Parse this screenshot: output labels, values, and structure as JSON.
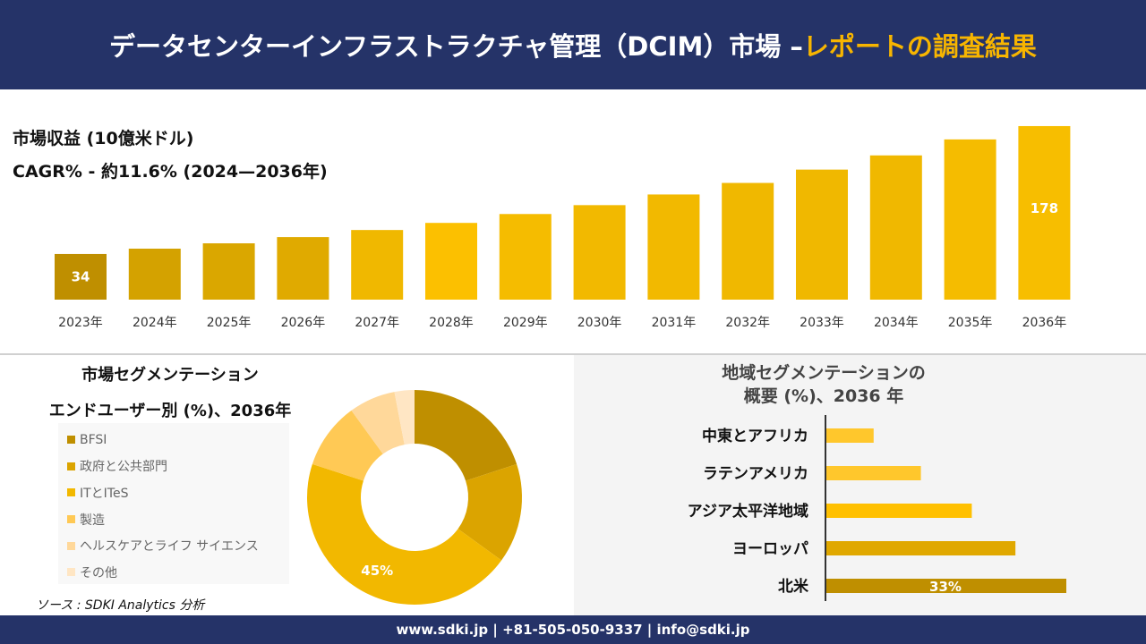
{
  "header": {
    "title_main": "データセンターインフラストラクチャ管理（DCIM）市場 –",
    "title_accent": "レポートの調査結果"
  },
  "revenue": {
    "title": "市場収益 (10億米ドル)",
    "cagr": "CAGR% - 約11.6% (2024—2036年)"
  },
  "chart_data": [
    {
      "type": "bar",
      "categories": [
        "2023年",
        "2024年",
        "2025年",
        "2026年",
        "2027年",
        "2028年",
        "2029年",
        "2030年",
        "2031年",
        "2032年",
        "2033年",
        "2034年",
        "2035年",
        "2036年"
      ],
      "values": [
        34,
        40,
        46,
        53,
        61,
        69,
        79,
        89,
        101,
        114,
        129,
        145,
        163,
        178
      ],
      "data_labels": [
        "34",
        null,
        null,
        null,
        null,
        null,
        null,
        null,
        null,
        null,
        null,
        null,
        null,
        "178"
      ],
      "colors": [
        "#bf8f00",
        "#d4a200",
        "#daa700",
        "#e0aa00",
        "#f0b800",
        "#fcc000",
        "#f5bc00",
        "#f2b900",
        "#f2b900",
        "#f0b800",
        "#f0b800",
        "#f0b800",
        "#f5bc00",
        "#f7be00"
      ],
      "title": "市場収益 (10億米ドル)",
      "ylabel": "",
      "xlabel": ""
    },
    {
      "type": "pie",
      "title": "市場セグメンテーション エンドユーザー別 (%)、2036年",
      "categories": [
        "BFSI",
        "政府と公共部門",
        "ITとITeS",
        "製造",
        "ヘルスケアとライフ サイエンス",
        "その他"
      ],
      "values": [
        20,
        15,
        45,
        10,
        7,
        3
      ],
      "data_labels": [
        null,
        null,
        "45%",
        null,
        null,
        null
      ],
      "colors": [
        "#bf8f00",
        "#dba400",
        "#f2b800",
        "#ffc955",
        "#ffd89a",
        "#ffe6c4"
      ],
      "legend": "left"
    },
    {
      "type": "bar",
      "orientation": "horizontal",
      "title": "地域セグメンテーションの 概要 (%)、2036 年",
      "categories": [
        "中東とアフリカ",
        "ラテンアメリカ",
        "アジア太平洋地域",
        "ヨーロッパ",
        "北米"
      ],
      "values": [
        6.5,
        13,
        20,
        26,
        33
      ],
      "data_labels": [
        null,
        null,
        null,
        null,
        "33%"
      ],
      "colors": [
        "#ffc72c",
        "#ffc72c",
        "#ffc000",
        "#e0a800",
        "#bf8f00"
      ]
    }
  ],
  "segment": {
    "line1": "市場セグメンテーション",
    "line2": "エンドユーザー別 (%)、2036年"
  },
  "region": {
    "line1": "地域セグメンテーションの",
    "line2": "概要 (%)、2036 年"
  },
  "source": "ソース : SDKI Analytics 分析",
  "footer": "www.sdki.jp | +81-505-050-9337 | info@sdki.jp"
}
